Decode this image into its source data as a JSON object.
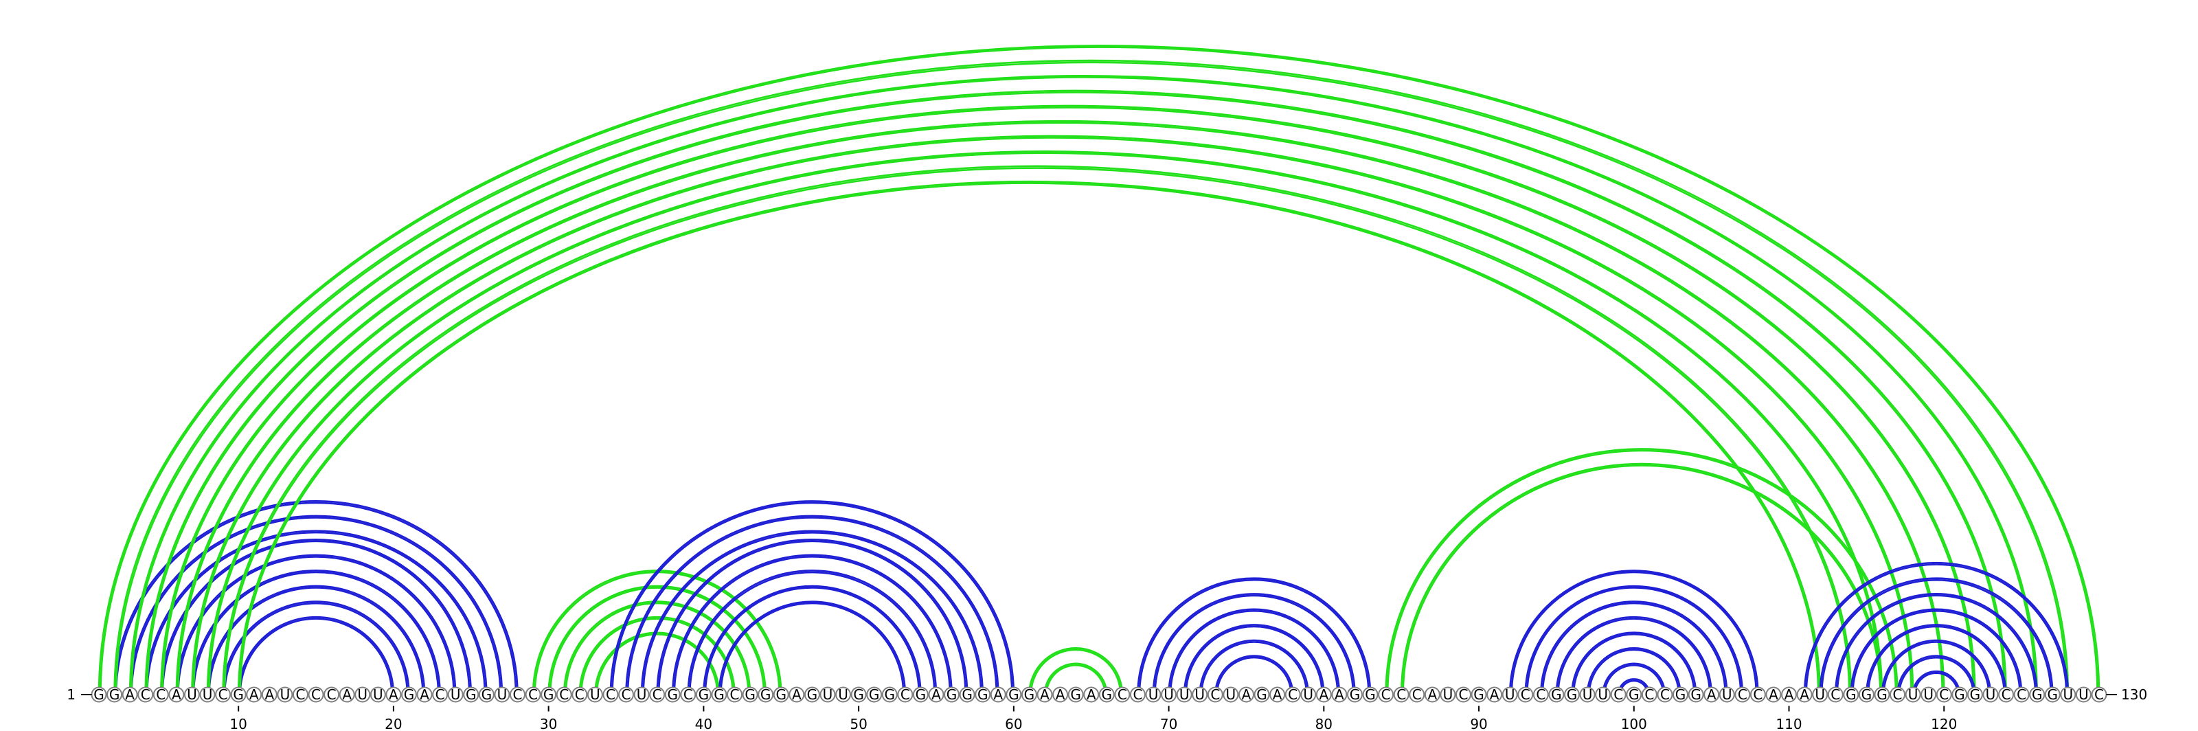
{
  "sequence": "GGACCAUUCGAAUCCCAUUAGACUGGUCCGCCUCCUCGCGGCGGGAGUUGGGCGAGGGAGGAAGAGCCUUUUCUAGACUAAGGCCCAUCGAUCCGGUUCGCCGGAUCCAAAUCGGGCUUCGGUCCGGUUC",
  "start_label": "1",
  "end_label": "130",
  "tick_positions": [
    10,
    20,
    30,
    40,
    50,
    60,
    70,
    80,
    90,
    100,
    110,
    120
  ],
  "colors": {
    "blue_arcs": "#1f1fd6",
    "green_arcs": "#22e01a",
    "base_outline": "#808080"
  },
  "arc_sets": [
    {
      "color": "blue",
      "pairs": [
        [
          2,
          28
        ],
        [
          3,
          27
        ],
        [
          4,
          26
        ],
        [
          5,
          25
        ],
        [
          6,
          24
        ],
        [
          7,
          23
        ],
        [
          8,
          22
        ],
        [
          9,
          21
        ],
        [
          10,
          20
        ]
      ]
    },
    {
      "color": "green",
      "pairs": [
        [
          1,
          130
        ],
        [
          2,
          128
        ],
        [
          3,
          126
        ],
        [
          4,
          124
        ],
        [
          5,
          122
        ],
        [
          6,
          120
        ],
        [
          7,
          118
        ],
        [
          8,
          116
        ],
        [
          9,
          114
        ],
        [
          10,
          112
        ]
      ]
    },
    {
      "color": "green",
      "pairs": [
        [
          29,
          45
        ],
        [
          30,
          44
        ],
        [
          31,
          43
        ],
        [
          32,
          42
        ],
        [
          33,
          41
        ]
      ]
    },
    {
      "color": "blue",
      "pairs": [
        [
          34,
          60
        ],
        [
          35,
          59
        ],
        [
          36,
          58
        ],
        [
          37,
          57
        ],
        [
          38,
          56
        ],
        [
          39,
          55
        ],
        [
          40,
          54
        ],
        [
          41,
          53
        ]
      ]
    },
    {
      "color": "green",
      "pairs": [
        [
          61,
          67
        ],
        [
          62,
          66
        ]
      ]
    },
    {
      "color": "blue",
      "pairs": [
        [
          68,
          83
        ],
        [
          69,
          82
        ],
        [
          70,
          81
        ],
        [
          71,
          80
        ],
        [
          72,
          79
        ],
        [
          73,
          78
        ]
      ]
    },
    {
      "color": "green",
      "pairs": [
        [
          84,
          117
        ],
        [
          85,
          116
        ]
      ]
    },
    {
      "color": "blue",
      "pairs": [
        [
          92,
          108
        ],
        [
          93,
          107
        ],
        [
          94,
          106
        ],
        [
          95,
          105
        ],
        [
          96,
          104
        ],
        [
          97,
          103
        ],
        [
          98,
          102
        ],
        [
          99,
          101
        ]
      ]
    },
    {
      "color": "blue",
      "pairs": [
        [
          111,
          128
        ],
        [
          112,
          127
        ],
        [
          113,
          126
        ],
        [
          114,
          125
        ],
        [
          115,
          124
        ],
        [
          116,
          123
        ],
        [
          117,
          122
        ],
        [
          118,
          121
        ]
      ]
    }
  ]
}
